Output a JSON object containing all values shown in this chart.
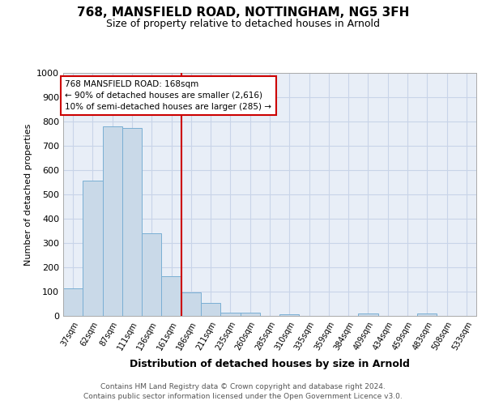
{
  "title_line1": "768, MANSFIELD ROAD, NOTTINGHAM, NG5 3FH",
  "title_line2": "Size of property relative to detached houses in Arnold",
  "xlabel": "Distribution of detached houses by size in Arnold",
  "ylabel": "Number of detached properties",
  "categories": [
    "37sqm",
    "62sqm",
    "87sqm",
    "111sqm",
    "136sqm",
    "161sqm",
    "186sqm",
    "211sqm",
    "235sqm",
    "260sqm",
    "285sqm",
    "310sqm",
    "335sqm",
    "359sqm",
    "384sqm",
    "409sqm",
    "434sqm",
    "459sqm",
    "483sqm",
    "508sqm",
    "533sqm"
  ],
  "values": [
    113,
    557,
    779,
    773,
    340,
    163,
    97,
    53,
    15,
    12,
    0,
    8,
    0,
    0,
    0,
    9,
    0,
    0,
    9,
    0,
    0
  ],
  "bar_color": "#c9d9e8",
  "bar_edge_color": "#7aafd4",
  "vline_x": 5.5,
  "vline_color": "#cc0000",
  "annotation_line1": "768 MANSFIELD ROAD: 168sqm",
  "annotation_line2": "← 90% of detached houses are smaller (2,616)",
  "annotation_line3": "10% of semi-detached houses are larger (285) →",
  "annotation_box_color": "#ffffff",
  "annotation_box_edge_color": "#cc0000",
  "ylim": [
    0,
    1000
  ],
  "yticks": [
    0,
    100,
    200,
    300,
    400,
    500,
    600,
    700,
    800,
    900,
    1000
  ],
  "grid_color": "#c8d4e8",
  "background_color": "#e8eef7",
  "footer_line1": "Contains HM Land Registry data © Crown copyright and database right 2024.",
  "footer_line2": "Contains public sector information licensed under the Open Government Licence v3.0."
}
